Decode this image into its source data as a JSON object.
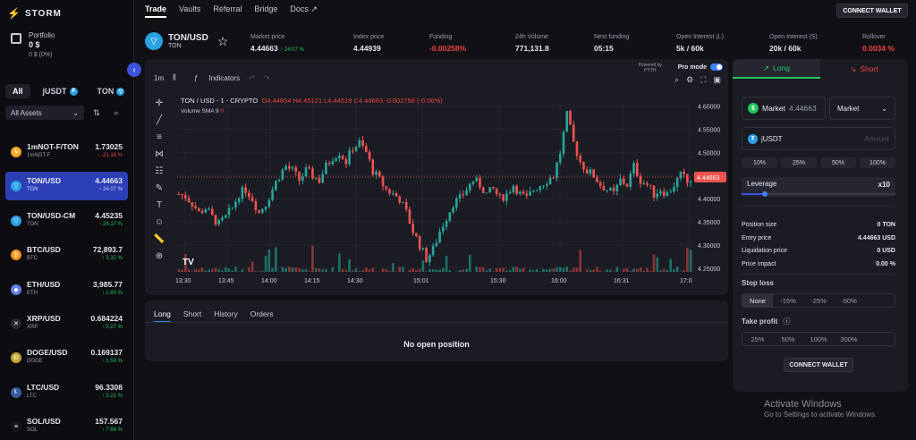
{
  "brand": {
    "name": "STORM"
  },
  "portfolio": {
    "label": "Portfolio",
    "value": "0 $",
    "sub": "0 $ (0%)"
  },
  "filters": {
    "all": "All",
    "jusdt": "jUSDT",
    "ton": "TON",
    "assets_select": "All Assets"
  },
  "assets": [
    {
      "name": "1mNOT-F/TON",
      "sub": "1mNOT-F",
      "price": "1.73025",
      "change": "↓ -21.16 %",
      "dir": "dn",
      "icon": "N",
      "color": "#f5a524"
    },
    {
      "name": "TON/USD",
      "sub": "TON",
      "price": "4.44663",
      "change": "↑ 24.07 %",
      "dir": "up",
      "icon": "▽",
      "color": "#2aa1e3"
    },
    {
      "name": "TON/USD-CM",
      "sub": "TON",
      "price": "4.45235",
      "change": "↑ 24.17 %",
      "dir": "up",
      "icon": "▽",
      "color": "#2aa1e3"
    },
    {
      "name": "BTC/USD",
      "sub": "BTC",
      "price": "72,893.7",
      "change": "↑ 3.32 %",
      "dir": "up",
      "icon": "₿",
      "color": "#f7931a"
    },
    {
      "name": "ETH/USD",
      "sub": "ETH",
      "price": "3,985.77",
      "change": "↑ 1.83 %",
      "dir": "up",
      "icon": "◆",
      "color": "#627eea"
    },
    {
      "name": "XRP/USD",
      "sub": "XRP",
      "price": "0.684224",
      "change": "↑ 0.27 %",
      "dir": "up",
      "icon": "✕",
      "color": "#23292f"
    },
    {
      "name": "DOGE/USD",
      "sub": "DOGE",
      "price": "0.169137",
      "change": "↑ 1.53 %",
      "dir": "up",
      "icon": "Ð",
      "color": "#c2a633"
    },
    {
      "name": "LTC/USD",
      "sub": "LTC",
      "price": "96.3308",
      "change": "↑ 3.21 %",
      "dir": "up",
      "icon": "Ł",
      "color": "#345d9d"
    },
    {
      "name": "SOL/USD",
      "sub": "SOL",
      "price": "157.567",
      "change": "↑ 7.66 %",
      "dir": "up",
      "icon": "≡",
      "color": "#14161b"
    }
  ],
  "nav": {
    "trade": "Trade",
    "vaults": "Vaults",
    "referral": "Referral",
    "bridge": "Bridge",
    "docs": "Docs ↗",
    "connect": "CONNECT WALLET"
  },
  "ticker": {
    "pair": "TON/USD",
    "sub": "TON"
  },
  "stats": [
    {
      "label": "Market price",
      "value": "4.44663",
      "extra": "↑ 24.07 %",
      "color": "#e6e8ee"
    },
    {
      "label": "Index price",
      "value": "4.44939",
      "extra": "",
      "color": "#e6e8ee"
    },
    {
      "label": "Funding",
      "value": "-0.00258%",
      "extra": "",
      "color": "#ef4444"
    },
    {
      "label": "24h Volume",
      "value": "771,131.8",
      "extra": "",
      "color": "#e6e8ee"
    },
    {
      "label": "Next funding",
      "value": "05:15",
      "extra": "",
      "color": "#e6e8ee"
    },
    {
      "label": "Open Interest (L)",
      "value": "5k / 60k",
      "extra": "",
      "color": "#e6e8ee"
    },
    {
      "label": "Open Interest (S)",
      "value": "20k / 60k",
      "extra": "",
      "color": "#e6e8ee"
    },
    {
      "label": "Rollover",
      "value": "0.0034 %",
      "extra": "",
      "color": "#ef4444"
    }
  ],
  "chart_toolbar": {
    "interval": "1m",
    "indicators": "Indicators",
    "pro_mode": "Pro mode",
    "powered": "Powered by",
    "pyth": "PYTH"
  },
  "chart_data": {
    "type": "candlestick",
    "legend": "TON / USD - 1 - CRYPTO",
    "ohlc": {
      "o": "O4.44854",
      "h": "H4.45121",
      "l": "L4.44519",
      "c": "C4.44663",
      "chg": "-0.002758 (-0.06%)"
    },
    "volume_label": "Volume SMA 9",
    "volume_value": "0",
    "y_ticks": [
      "4.60000",
      "4.55000",
      "4.50000",
      "4.45000",
      "4.40000",
      "4.35000",
      "4.30000",
      "4.25000"
    ],
    "y_values": [
      4.6,
      4.55,
      4.5,
      4.45,
      4.4,
      4.35,
      4.3,
      4.25
    ],
    "ylim": [
      4.242,
      4.605
    ],
    "x_ticks": [
      "13:30",
      "13:45",
      "14:00",
      "14:15",
      "14:30",
      "15:01",
      "15:30",
      "16:00",
      "16:31",
      "17:0"
    ],
    "last_price": "4.44663",
    "last_value": 4.44663,
    "close_path": [
      4.41,
      4.405,
      4.39,
      4.37,
      4.38,
      4.36,
      4.345,
      4.36,
      4.38,
      4.41,
      4.42,
      4.4,
      4.37,
      4.39,
      4.42,
      4.45,
      4.47,
      4.46,
      4.44,
      4.46,
      4.45,
      4.44,
      4.47,
      4.49,
      4.5,
      4.48,
      4.51,
      4.52,
      4.5,
      4.46,
      4.44,
      4.42,
      4.41,
      4.4,
      4.37,
      4.33,
      4.3,
      4.27,
      4.29,
      4.33,
      4.36,
      4.39,
      4.4,
      4.42,
      4.44,
      4.43,
      4.41,
      4.42,
      4.4,
      4.41,
      4.43,
      4.41,
      4.4,
      4.42,
      4.43,
      4.44,
      4.45,
      4.5,
      4.58,
      4.52,
      4.48,
      4.46,
      4.45,
      4.43,
      4.42,
      4.41,
      4.44,
      4.43,
      4.47,
      4.44,
      4.43,
      4.41,
      4.42,
      4.41,
      4.43,
      4.45,
      4.44
    ]
  },
  "bottom_tabs": {
    "long": "Long",
    "short": "Short",
    "history": "History",
    "orders": "Orders",
    "empty": "No open position"
  },
  "order": {
    "long": "Long",
    "short": "Short",
    "market_label": "Market",
    "market_price": "4.44663",
    "type": "Market",
    "token": "jUSDT",
    "amount_placeholder": "Amount",
    "pcts": [
      "10%",
      "25%",
      "50%",
      "100%"
    ],
    "leverage_label": "Leverage",
    "leverage_value": "x10",
    "leverage_fraction": 0.15,
    "info": [
      {
        "label": "Position size",
        "value": "0 TON"
      },
      {
        "label": "Entry price",
        "value": "4.44663 USD"
      },
      {
        "label": "Liquidation price",
        "value": "0 USD"
      },
      {
        "label": "Price impact",
        "value": "0.00 %"
      }
    ],
    "stop_loss": "Stop loss",
    "sl_opts": [
      "None",
      "-15%",
      "-25%",
      "-50%",
      ""
    ],
    "take_profit": "Take profit",
    "tp_opts": [
      "25%",
      "50%",
      "100%",
      "300%",
      ""
    ],
    "connect": "CONNECT WALLET"
  },
  "watermark": {
    "title": "Activate Windows",
    "sub": "Go to Settings to activate Windows."
  }
}
